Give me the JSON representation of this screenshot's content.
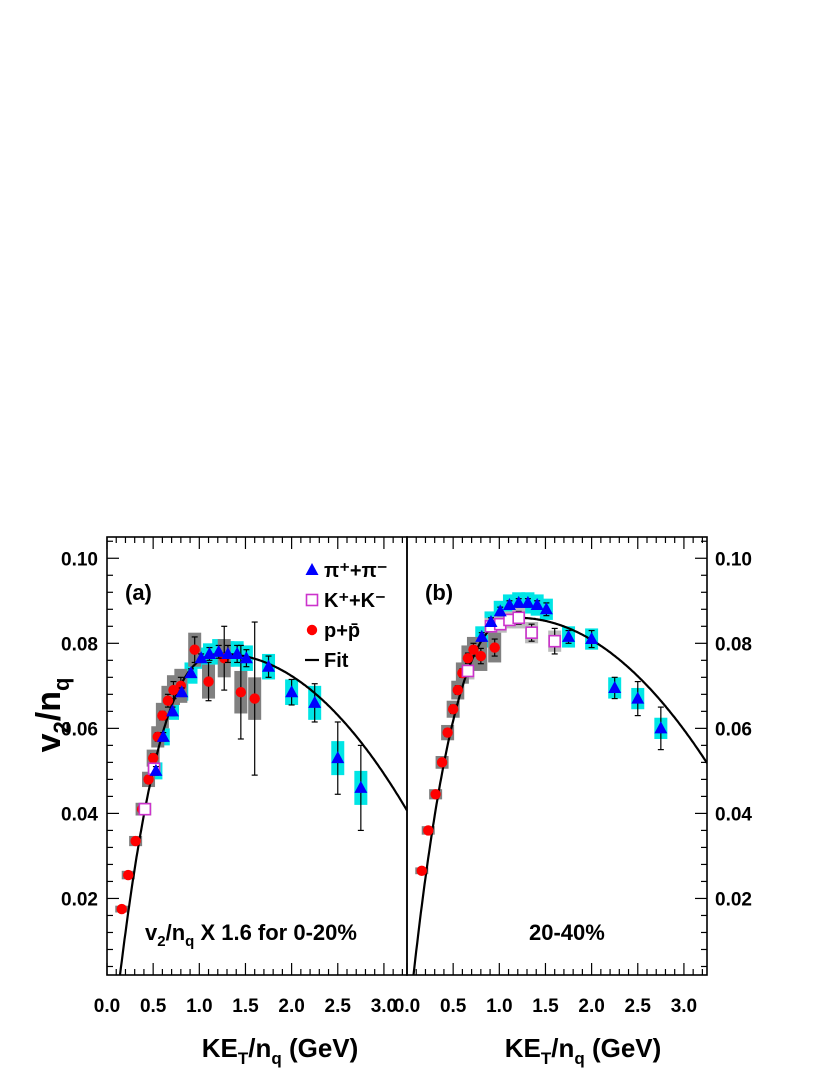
{
  "chart_data": {
    "type": "scatter",
    "ylabel": "v2/nq",
    "xlabel": "KET/nq (GeV)",
    "xlim": [
      0.0,
      3.25
    ],
    "ylim": [
      0.002,
      0.105
    ],
    "x_ticks": [
      "0.0",
      "0.5",
      "1.0",
      "1.5",
      "2.0",
      "2.5",
      "3.0"
    ],
    "y_ticks": [
      "0.02",
      "0.04",
      "0.06",
      "0.08",
      "0.10"
    ],
    "legend": {
      "placement": "top-right of panel (a)",
      "entries": [
        {
          "name": "π⁺+π⁻",
          "marker": "triangle",
          "color": "#0000ff"
        },
        {
          "name": "K⁺+K⁻",
          "marker": "open-square",
          "color": "#cc33cc"
        },
        {
          "name": "p+p̄",
          "marker": "circle",
          "color": "#ff0000"
        },
        {
          "name": "Fit",
          "marker": "line",
          "color": "#000000"
        }
      ]
    },
    "panels": [
      {
        "label": "(a)",
        "note": "v2/nq X 1.6 for 0-20%",
        "fit": {
          "peak_x": 1.25,
          "peak_y": 0.0775,
          "y_at_3_2": 0.0425,
          "start_x": 0.13
        },
        "series": [
          {
            "name": "π⁺+π⁻",
            "x": [
              0.53,
              0.61,
              0.71,
              0.81,
              0.91,
              1.02,
              1.11,
              1.21,
              1.31,
              1.41,
              1.51,
              1.75,
              2.0,
              2.25,
              2.5,
              2.75
            ],
            "y": [
              0.05,
              0.058,
              0.064,
              0.0685,
              0.073,
              0.0765,
              0.0775,
              0.078,
              0.0775,
              0.0775,
              0.0765,
              0.0745,
              0.0685,
              0.066,
              0.053,
              0.046
            ],
            "yerr": [
              0.001,
              0.001,
              0.001,
              0.001,
              0.001,
              0.001,
              0.0015,
              0.0015,
              0.002,
              0.002,
              0.002,
              0.0025,
              0.003,
              0.0045,
              0.0085,
              0.01
            ],
            "sys": [
              0.002,
              0.002,
              0.002,
              0.002,
              0.0025,
              0.0025,
              0.0025,
              0.003,
              0.003,
              0.003,
              0.003,
              0.003,
              0.003,
              0.004,
              0.004,
              0.004
            ]
          },
          {
            "name": "K⁺+K⁻",
            "x": [
              0.41,
              0.51
            ],
            "y": [
              0.041,
              0.0505
            ],
            "yerr": [
              0.0008,
              0.0008
            ],
            "sys": [
              0.0015,
              0.0015
            ]
          },
          {
            "name": "p+p̄",
            "x": [
              0.16,
              0.23,
              0.31,
              0.38,
              0.45,
              0.5,
              0.55,
              0.6,
              0.66,
              0.72,
              0.8,
              0.95,
              1.1,
              1.27,
              1.45,
              1.6
            ],
            "y": [
              0.0175,
              0.0255,
              0.0335,
              0.041,
              0.048,
              0.053,
              0.058,
              0.063,
              0.0665,
              0.069,
              0.07,
              0.0785,
              0.071,
              0.0765,
              0.0685,
              0.067
            ],
            "yerr": [
              0.0005,
              0.0006,
              0.0007,
              0.0008,
              0.0009,
              0.001,
              0.001,
              0.001,
              0.0015,
              0.002,
              0.002,
              0.003,
              0.0045,
              0.0075,
              0.011,
              0.018
            ],
            "sys": [
              0.0008,
              0.001,
              0.0012,
              0.0015,
              0.0018,
              0.002,
              0.0025,
              0.003,
              0.0035,
              0.0035,
              0.004,
              0.004,
              0.004,
              0.0045,
              0.005,
              0.005
            ]
          }
        ]
      },
      {
        "label": "(b)",
        "note": "20-40%",
        "fit": {
          "peak_x": 1.2,
          "peak_y": 0.086,
          "y_at_3_2": 0.0535,
          "start_x": 0.06
        },
        "series": [
          {
            "name": "π⁺+π⁻",
            "x": [
              0.81,
              0.91,
              1.01,
              1.11,
              1.21,
              1.31,
              1.41,
              1.51,
              1.75,
              2.0,
              2.25,
              2.5,
              2.75
            ],
            "y": [
              0.0815,
              0.085,
              0.0875,
              0.089,
              0.0895,
              0.0895,
              0.089,
              0.088,
              0.0815,
              0.081,
              0.0695,
              0.067,
              0.06
            ],
            "yerr": [
              0.001,
              0.001,
              0.001,
              0.001,
              0.001,
              0.001,
              0.001,
              0.0015,
              0.0015,
              0.002,
              0.0025,
              0.004,
              0.005
            ],
            "sys": [
              0.0025,
              0.0025,
              0.0025,
              0.0025,
              0.0025,
              0.0025,
              0.0025,
              0.0025,
              0.0025,
              0.0025,
              0.0025,
              0.0025,
              0.0025
            ]
          },
          {
            "name": "K⁺+K⁻",
            "x": [
              0.66,
              0.91,
              1.01,
              1.11,
              1.21,
              1.35,
              1.6
            ],
            "y": [
              0.0735,
              0.084,
              0.0845,
              0.0855,
              0.086,
              0.0825,
              0.0805
            ],
            "yerr": [
              0.001,
              0.001,
              0.001,
              0.0012,
              0.0015,
              0.002,
              0.003
            ],
            "sys": [
              0.002,
              0.002,
              0.002,
              0.002,
              0.0025,
              0.0025,
              0.0025
            ]
          },
          {
            "name": "p+p̄",
            "x": [
              0.16,
              0.23,
              0.31,
              0.38,
              0.44,
              0.5,
              0.55,
              0.6,
              0.66,
              0.72,
              0.8,
              0.95
            ],
            "y": [
              0.0265,
              0.036,
              0.0445,
              0.052,
              0.059,
              0.0645,
              0.069,
              0.073,
              0.0765,
              0.0785,
              0.077,
              0.079
            ],
            "yerr": [
              0.0005,
              0.0006,
              0.0007,
              0.0008,
              0.0009,
              0.001,
              0.001,
              0.001,
              0.0012,
              0.0015,
              0.0018,
              0.002
            ],
            "sys": [
              0.0008,
              0.001,
              0.0012,
              0.0015,
              0.0018,
              0.002,
              0.0022,
              0.0025,
              0.003,
              0.003,
              0.0035,
              0.0035
            ]
          }
        ]
      }
    ]
  }
}
